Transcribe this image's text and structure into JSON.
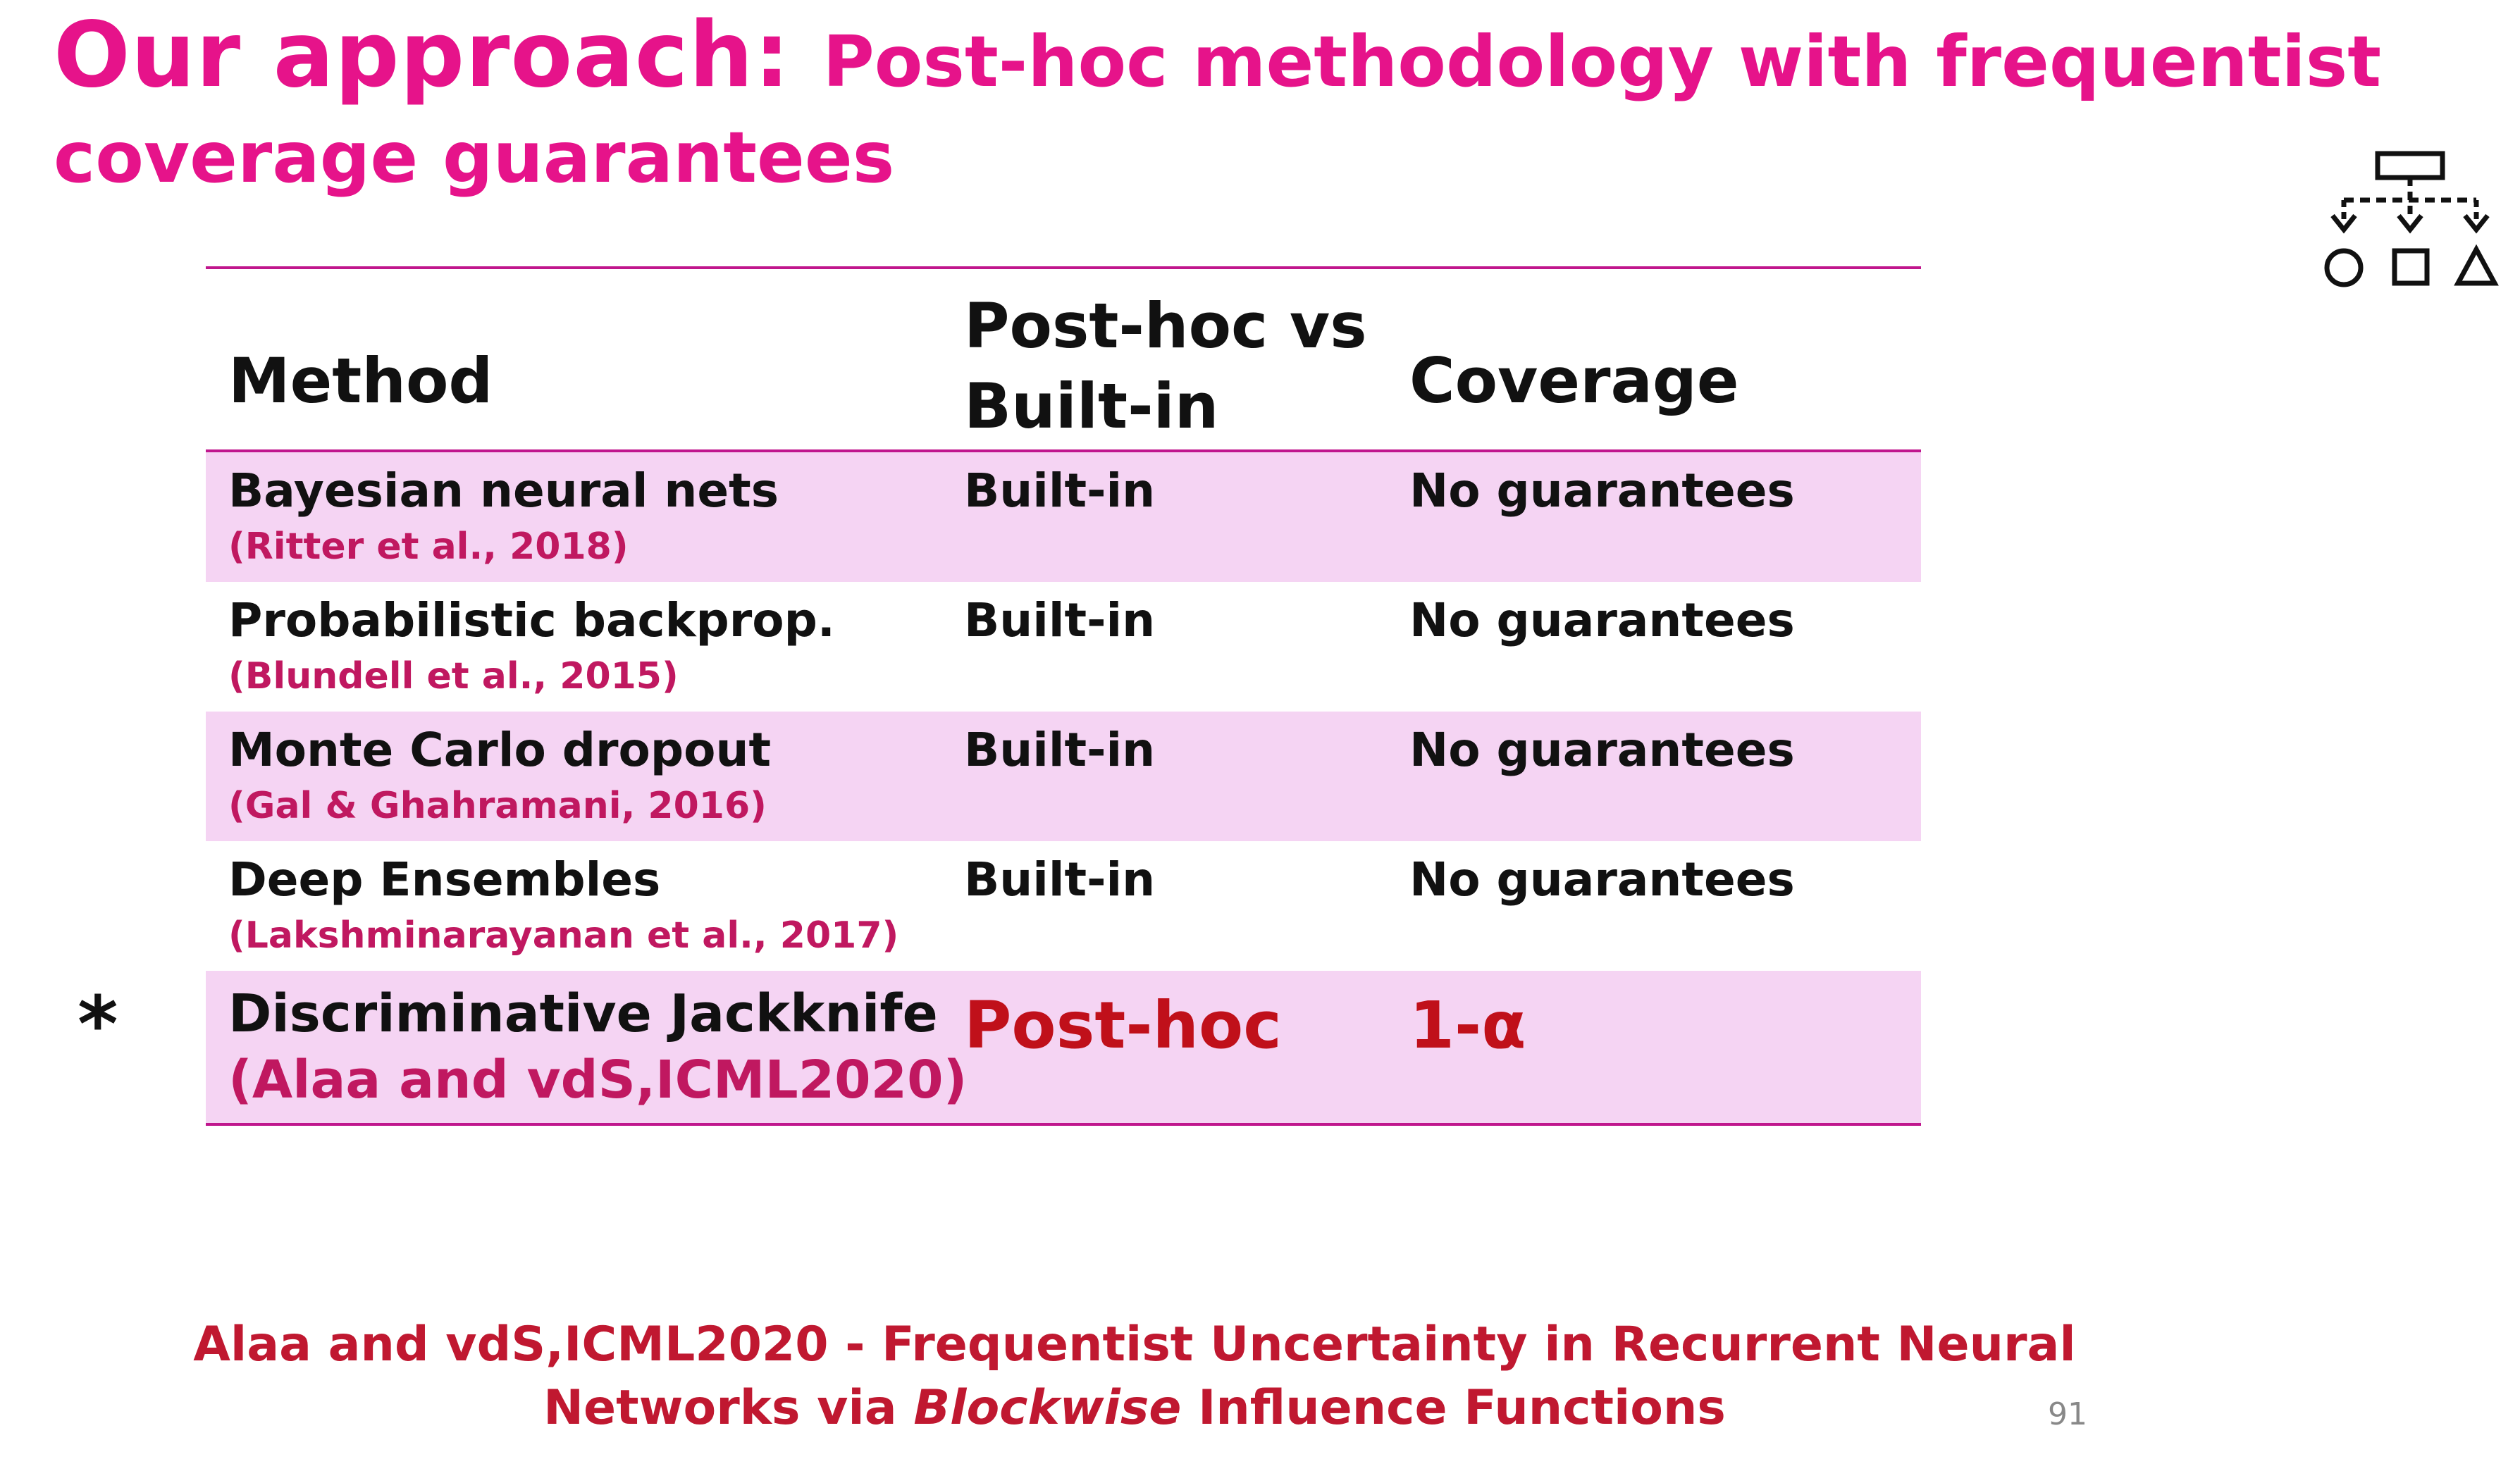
{
  "title": {
    "main": "Our approach: ",
    "sub_line1": "Post-hoc methodology with frequentist",
    "sub_line2": "coverage guarantees"
  },
  "table": {
    "headers": {
      "method": "Method",
      "posthoc_line1": "Post-hoc vs",
      "posthoc_line2": "Built-in",
      "coverage": "Coverage"
    },
    "rows": [
      {
        "method": "Bayesian neural nets",
        "ref": "(Ritter et al., 2018)",
        "type": "Built-in",
        "coverage": "No guarantees"
      },
      {
        "method": "Probabilistic backprop.",
        "ref": "(Blundell et al., 2015)",
        "type": "Built-in",
        "coverage": "No guarantees"
      },
      {
        "method": "Monte Carlo dropout",
        "ref": "(Gal & Ghahramani, 2016)",
        "type": "Built-in",
        "coverage": "No guarantees"
      },
      {
        "method": "Deep Ensembles",
        "ref": "(Lakshminarayanan et al., 2017)",
        "type": "Built-in",
        "coverage": "No guarantees"
      },
      {
        "method": "Discriminative Jackknife",
        "ref": "(Alaa and vdS,ICML2020)",
        "type": "Post-hoc",
        "coverage": "1-α"
      }
    ],
    "highlight_marker": "*"
  },
  "citation": {
    "authors": "Alaa and vdS,ICML2020 - ",
    "title_part1": "Frequentist Uncertainty in Recurrent Neural",
    "title_part2": "Networks via ",
    "title_em": "Blockwise",
    "title_part3": " Influence Functions"
  },
  "page_number": "91",
  "icons": {
    "diagram": "flowchart-icon"
  },
  "colors": {
    "title": "#e6138a",
    "accent": "#c01860",
    "shade": "#f5d4f3",
    "rule": "#c0168d"
  }
}
